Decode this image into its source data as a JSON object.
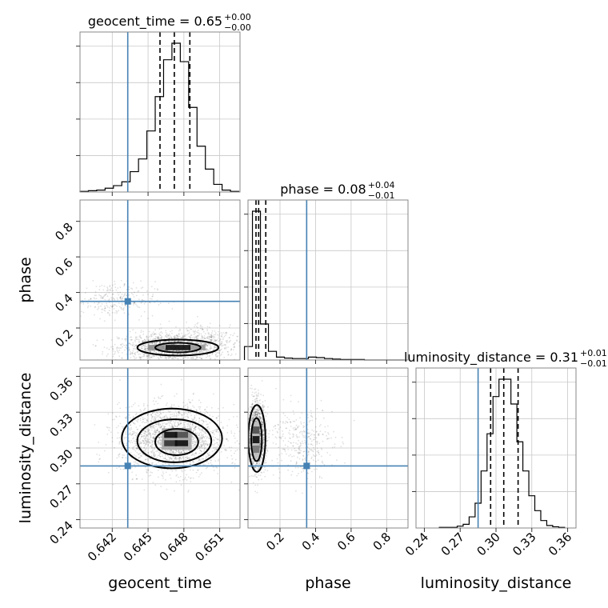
{
  "chart_data": {
    "type": "corner",
    "parameters": [
      "geocent_time",
      "phase",
      "luminosity_distance"
    ],
    "truth_color": "#4682b4",
    "truths": {
      "geocent_time": 0.6433,
      "phase": 0.35,
      "luminosity_distance": 0.285
    },
    "panels": {
      "geocent_time": {
        "title": {
          "main": "geocent_time = 0.65",
          "sup": "+0.00",
          "sub": "−0.00"
        },
        "xlim": [
          0.6393,
          0.6527
        ],
        "quantiles": [
          0.646,
          0.6472,
          0.6485
        ],
        "hist_edges": [
          0.6393,
          0.64,
          0.6407,
          0.6414,
          0.6421,
          0.6428,
          0.6435,
          0.6442,
          0.6449,
          0.6456,
          0.6463,
          0.647,
          0.6477,
          0.6484,
          0.6491,
          0.6498,
          0.6505,
          0.6512,
          0.6519,
          0.6526
        ],
        "hist_values": [
          1,
          2,
          3,
          6,
          10,
          16,
          32,
          52,
          96,
          150,
          208,
          234,
          205,
          133,
          72,
          36,
          12,
          3,
          1
        ]
      },
      "phase": {
        "title": {
          "main": "phase = 0.08",
          "sup": "+0.04",
          "sub": "−0.01"
        },
        "xlim": [
          0.0,
          0.9
        ],
        "ticks": [
          "0.2",
          "0.4",
          "0.6",
          "0.8"
        ],
        "tick_values": [
          0.2,
          0.4,
          0.6,
          0.8
        ],
        "quantiles": [
          0.065,
          0.08,
          0.12
        ],
        "hist_edges": [
          0.0,
          0.045,
          0.09,
          0.135,
          0.18,
          0.225,
          0.27,
          0.315,
          0.36,
          0.405,
          0.45,
          0.495,
          0.54,
          0.585,
          0.63,
          0.675,
          0.72,
          0.765,
          0.81,
          0.855,
          0.9
        ],
        "hist_values": [
          28,
          310,
          75,
          18,
          6,
          4,
          3,
          3,
          6,
          5,
          3,
          2,
          1,
          1,
          1,
          0,
          0,
          0,
          0,
          0
        ]
      },
      "luminosity_distance": {
        "title": {
          "main": "luminosity_distance = 0.31",
          "sup": "+0.01",
          "sub": "−0.01"
        },
        "xlim": [
          0.23,
          0.365
        ],
        "ticks": [
          "0.24",
          "0.27",
          "0.30",
          "0.33",
          "0.36"
        ],
        "tick_values": [
          0.24,
          0.27,
          0.3,
          0.33,
          0.36
        ],
        "quantiles": [
          0.2955,
          0.3065,
          0.3185
        ],
        "hist_edges": [
          0.2525,
          0.2575,
          0.2625,
          0.2675,
          0.2725,
          0.2775,
          0.2825,
          0.2875,
          0.2925,
          0.2975,
          0.3025,
          0.3075,
          0.3125,
          0.3175,
          0.3225,
          0.3275,
          0.3325,
          0.3375,
          0.3425,
          0.3475,
          0.3525,
          0.3575
        ],
        "hist_values": [
          1,
          1,
          1,
          3,
          6,
          18,
          40,
          92,
          152,
          212,
          240,
          240,
          200,
          139,
          92,
          52,
          28,
          12,
          4,
          2,
          1
        ]
      }
    },
    "axes": {
      "geocent_time": {
        "label": "geocent_time",
        "ticks": [
          "0.642",
          "0.645",
          "0.648",
          "0.651"
        ],
        "tick_values": [
          0.642,
          0.645,
          0.648,
          0.651
        ]
      },
      "phase": {
        "label": "phase",
        "ticks": [
          "0.2",
          "0.4",
          "0.6",
          "0.8"
        ],
        "tick_values": [
          0.2,
          0.4,
          0.6,
          0.8
        ],
        "range": [
          0.02,
          0.92
        ]
      },
      "luminosity_distance": {
        "label": "luminosity_distance",
        "ticks": [
          "0.24",
          "0.27",
          "0.30",
          "0.33",
          "0.36"
        ],
        "tick_values": [
          0.24,
          0.27,
          0.3,
          0.33,
          0.36
        ],
        "range": [
          0.233,
          0.367
        ]
      }
    },
    "clusters": {
      "geocent_time_vs_phase": [
        {
          "x": 0.647,
          "y": 0.09,
          "sx": 0.0022,
          "sy": 0.04,
          "n": 1400
        },
        {
          "x": 0.642,
          "y": 0.36,
          "sx": 0.0018,
          "sy": 0.05,
          "n": 280
        },
        {
          "x": 0.65,
          "y": 0.14,
          "sx": 0.0017,
          "sy": 0.05,
          "n": 220
        }
      ],
      "geocent_time_vs_luminosity_distance": [
        {
          "x": 0.647,
          "y": 0.307,
          "sx": 0.0022,
          "sy": 0.014,
          "n": 1900
        }
      ],
      "phase_vs_luminosity_distance": [
        {
          "x": 0.07,
          "y": 0.31,
          "sx": 0.025,
          "sy": 0.014,
          "n": 1500
        },
        {
          "x": 0.32,
          "y": 0.305,
          "sx": 0.09,
          "sy": 0.015,
          "n": 350
        }
      ]
    },
    "contours": {
      "geocent_time_vs_phase": [
        {
          "cx": 0.6475,
          "cy": 0.09,
          "rx": 0.0034,
          "ry": 0.045
        },
        {
          "cx": 0.6475,
          "cy": 0.09,
          "rx": 0.0019,
          "ry": 0.027
        }
      ],
      "geocent_time_vs_luminosity_distance": [
        {
          "cx": 0.647,
          "cy": 0.308,
          "rx": 0.0042,
          "ry": 0.025
        },
        {
          "cx": 0.6472,
          "cy": 0.306,
          "rx": 0.0031,
          "ry": 0.018
        },
        {
          "cx": 0.6474,
          "cy": 0.305,
          "rx": 0.0018,
          "ry": 0.011
        }
      ],
      "phase_vs_luminosity_distance": [
        {
          "cx": 0.07,
          "cy": 0.308,
          "rx": 0.048,
          "ry": 0.028
        },
        {
          "cx": 0.068,
          "cy": 0.307,
          "rx": 0.03,
          "ry": 0.018
        }
      ]
    },
    "density_cells": {
      "geocent_time_vs_phase": [
        {
          "x": 0.6475,
          "y": 0.09,
          "w": 0.0021,
          "h": 0.03,
          "shade": 0.95
        },
        {
          "x": 0.6457,
          "y": 0.09,
          "w": 0.0014,
          "h": 0.03,
          "shade": 0.45
        },
        {
          "x": 0.6491,
          "y": 0.09,
          "w": 0.0014,
          "h": 0.03,
          "shade": 0.4
        }
      ],
      "geocent_time_vs_luminosity_distance": [
        {
          "x": 0.6469,
          "y": 0.311,
          "w": 0.0011,
          "h": 0.005,
          "shade": 0.95
        },
        {
          "x": 0.6478,
          "y": 0.304,
          "w": 0.0011,
          "h": 0.005,
          "shade": 0.95
        },
        {
          "x": 0.6469,
          "y": 0.304,
          "w": 0.0011,
          "h": 0.005,
          "shade": 0.8
        },
        {
          "x": 0.6478,
          "y": 0.311,
          "w": 0.0011,
          "h": 0.005,
          "shade": 0.7
        },
        {
          "x": 0.6474,
          "y": 0.3075,
          "w": 0.0025,
          "h": 0.018,
          "shade": 0.35
        }
      ],
      "phase_vs_luminosity_distance": [
        {
          "x": 0.065,
          "y": 0.307,
          "w": 0.04,
          "h": 0.006,
          "shade": 0.95
        },
        {
          "x": 0.065,
          "y": 0.315,
          "w": 0.04,
          "h": 0.006,
          "shade": 0.7
        },
        {
          "x": 0.065,
          "y": 0.299,
          "w": 0.04,
          "h": 0.006,
          "shade": 0.55
        },
        {
          "x": 0.065,
          "y": 0.307,
          "w": 0.04,
          "h": 0.03,
          "shade": 0.25
        }
      ]
    }
  }
}
